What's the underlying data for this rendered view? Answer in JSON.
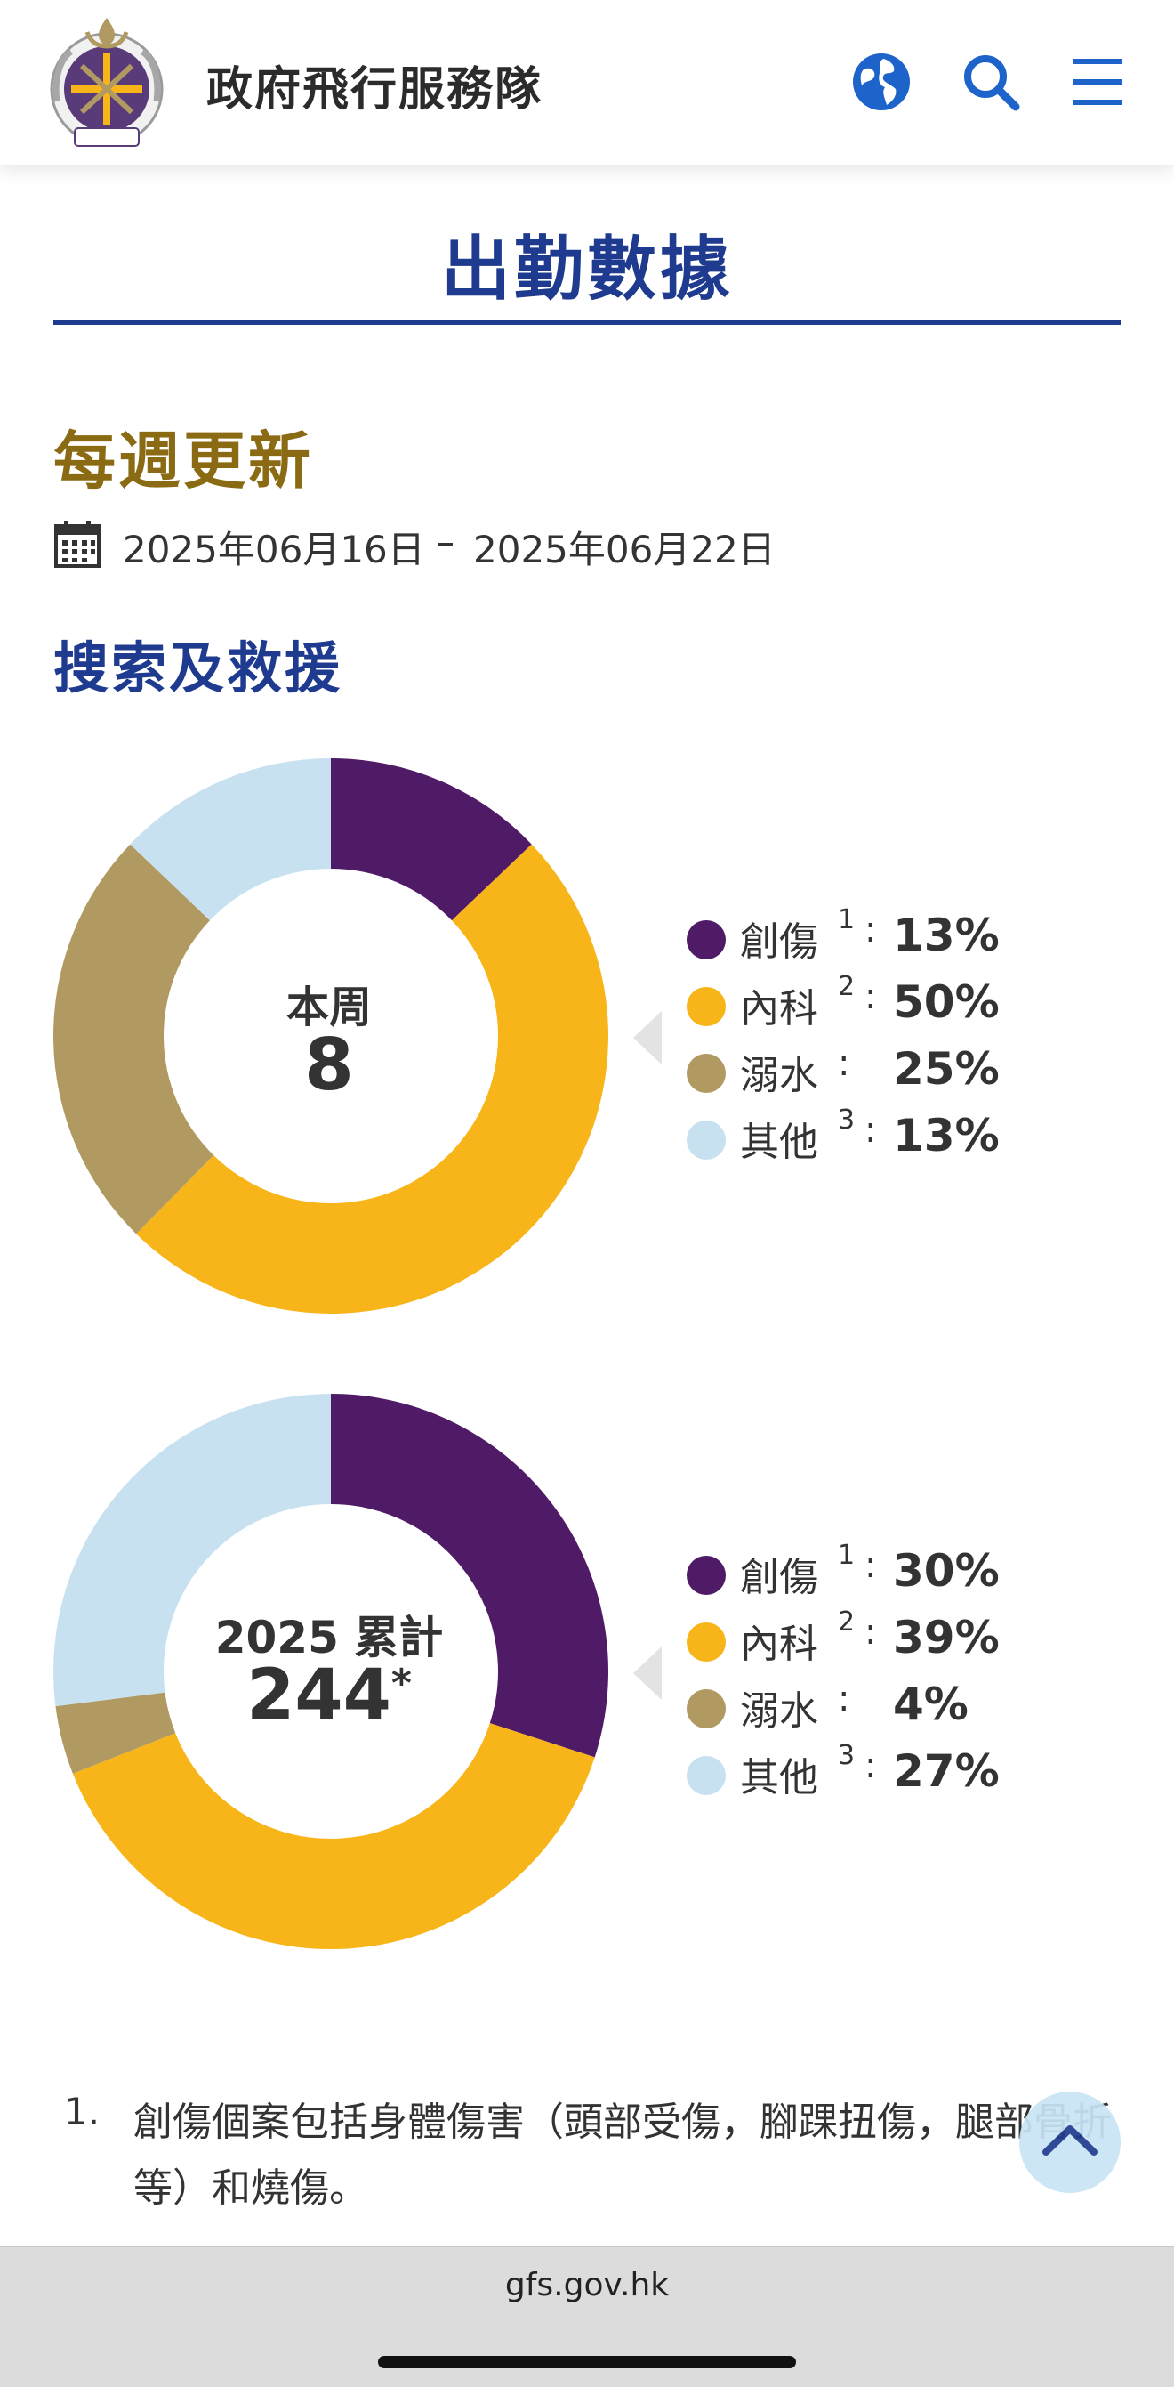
{
  "header": {
    "site_name": "政府飛行服務隊",
    "icons": [
      "logo-icon",
      "globe-icon",
      "search-icon",
      "menu-icon"
    ]
  },
  "page": {
    "title": "出勤數據",
    "subtitle": "每週更新",
    "date_start": "2025年06月16日",
    "date_sep": "–",
    "date_end": "2025年06月22日",
    "section": "搜索及救援"
  },
  "colors": {
    "trauma": "#4f1a66",
    "medical": "#f7b519",
    "drowning": "#b09a62",
    "other": "#c8e1f1",
    "accent_blue": "#1f3b8f",
    "accent_gold": "#8a6a12"
  },
  "chart_data": [
    {
      "type": "pie",
      "center_label": "本周",
      "center_value": "8",
      "categories": [
        "創傷",
        "內科",
        "溺水",
        "其他"
      ],
      "values": [
        13,
        50,
        25,
        13
      ],
      "legend": [
        {
          "name": "創傷",
          "sup": "1",
          "pct": "13%"
        },
        {
          "name": "內科",
          "sup": "2",
          "pct": "50%"
        },
        {
          "name": "溺水",
          "sup": "",
          "pct": "25%"
        },
        {
          "name": "其他",
          "sup": "3",
          "pct": "13%"
        }
      ]
    },
    {
      "type": "pie",
      "center_label": "2025 累計",
      "center_value": "244",
      "center_mark": "*",
      "categories": [
        "創傷",
        "內科",
        "溺水",
        "其他"
      ],
      "values": [
        30,
        39,
        4,
        27
      ],
      "legend": [
        {
          "name": "創傷",
          "sup": "1",
          "pct": "30%"
        },
        {
          "name": "內科",
          "sup": "2",
          "pct": "39%"
        },
        {
          "name": "溺水",
          "sup": "",
          "pct": "4%"
        },
        {
          "name": "其他",
          "sup": "3",
          "pct": "27%"
        }
      ]
    }
  ],
  "notes": {
    "n1_num": "1.",
    "n1_text": "創傷個案包括身體傷害（頭部受傷，腳踝扭傷，腿部骨折等）和燒傷。"
  },
  "browser": {
    "url": "gfs.gov.hk"
  }
}
